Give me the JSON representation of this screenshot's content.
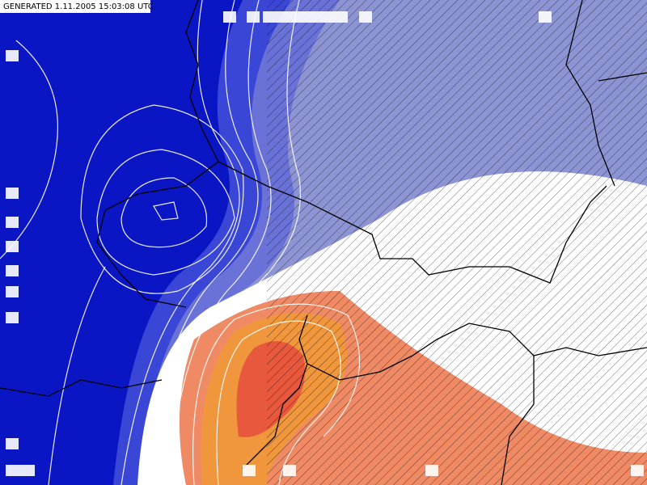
{
  "header": {
    "generated": "GENERATED 1.11.2005 15:03:08 UTC"
  }
}
